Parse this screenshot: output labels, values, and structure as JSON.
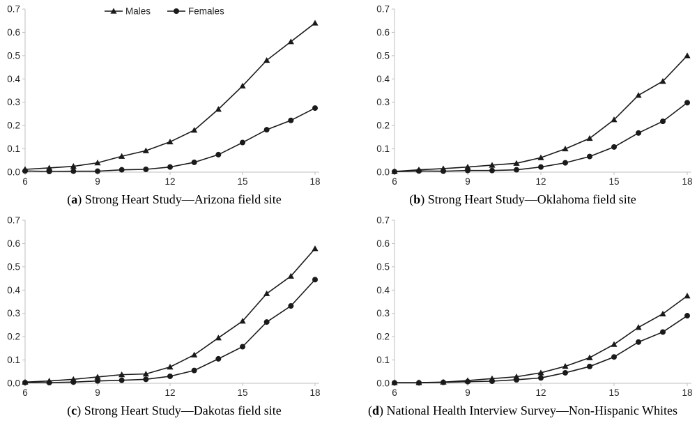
{
  "figure": {
    "background": "#ffffff",
    "series_color": "#1a1a1a",
    "axis_color": "#bfbfbf",
    "tick_label_color": "#262626"
  },
  "legend": {
    "position": "top of panel a",
    "items": [
      {
        "label": "Males",
        "marker": "triangle"
      },
      {
        "label": "Females",
        "marker": "circle"
      }
    ]
  },
  "chart_data": [
    {
      "type": "line",
      "caption": {
        "prefix": "(",
        "letter": "a",
        "suffix": ") ",
        "text": "Strong Heart Study—Arizona field site"
      },
      "x": [
        6,
        7,
        8,
        9,
        10,
        11,
        12,
        13,
        14,
        15,
        16,
        17,
        18
      ],
      "xticks": [
        6,
        9,
        12,
        15,
        18
      ],
      "yticks": [
        "0.0",
        "0.1",
        "0.2",
        "0.3",
        "0.4",
        "0.5",
        "0.6",
        "0.7"
      ],
      "xlim": [
        6,
        18
      ],
      "ylim": [
        0,
        0.7
      ],
      "grid": false,
      "show_legend": true,
      "legend_position": "top-center",
      "series": [
        {
          "name": "Males",
          "marker": "triangle",
          "values": [
            0.012,
            0.018,
            0.025,
            0.04,
            0.068,
            0.092,
            0.13,
            0.18,
            0.27,
            0.37,
            0.48,
            0.56,
            0.64
          ]
        },
        {
          "name": "Females",
          "marker": "circle",
          "values": [
            0.005,
            0.003,
            0.004,
            0.004,
            0.01,
            0.012,
            0.022,
            0.042,
            0.075,
            0.127,
            0.182,
            0.222,
            0.275
          ]
        }
      ]
    },
    {
      "type": "line",
      "caption": {
        "prefix": "(",
        "letter": "b",
        "suffix": ") ",
        "text": "Strong Heart Study—Oklahoma field site"
      },
      "x": [
        6,
        7,
        8,
        9,
        10,
        11,
        12,
        13,
        14,
        15,
        16,
        17,
        18
      ],
      "xticks": [
        6,
        9,
        12,
        15,
        18
      ],
      "yticks": [
        "0.0",
        "0.1",
        "0.2",
        "0.3",
        "0.4",
        "0.5",
        "0.6",
        "0.7"
      ],
      "xlim": [
        6,
        18
      ],
      "ylim": [
        0,
        0.7
      ],
      "grid": false,
      "show_legend": false,
      "series": [
        {
          "name": "Males",
          "marker": "triangle",
          "values": [
            0.003,
            0.01,
            0.015,
            0.022,
            0.03,
            0.038,
            0.062,
            0.1,
            0.145,
            0.225,
            0.33,
            0.39,
            0.5
          ]
        },
        {
          "name": "Females",
          "marker": "circle",
          "values": [
            0.002,
            0.005,
            0.004,
            0.007,
            0.007,
            0.01,
            0.022,
            0.04,
            0.067,
            0.108,
            0.168,
            0.218,
            0.298
          ]
        }
      ]
    },
    {
      "type": "line",
      "caption": {
        "prefix": "(",
        "letter": "c",
        "suffix": ") ",
        "text": "Strong Heart Study—Dakotas field site"
      },
      "x": [
        6,
        7,
        8,
        9,
        10,
        11,
        12,
        13,
        14,
        15,
        16,
        17,
        18
      ],
      "xticks": [
        6,
        9,
        12,
        15,
        18
      ],
      "yticks": [
        "0.0",
        "0.1",
        "0.2",
        "0.3",
        "0.4",
        "0.5",
        "0.6",
        "0.7"
      ],
      "xlim": [
        6,
        18
      ],
      "ylim": [
        0,
        0.7
      ],
      "grid": false,
      "show_legend": false,
      "series": [
        {
          "name": "Males",
          "marker": "triangle",
          "values": [
            0.005,
            0.01,
            0.017,
            0.027,
            0.037,
            0.04,
            0.07,
            0.122,
            0.195,
            0.267,
            0.385,
            0.46,
            0.578
          ]
        },
        {
          "name": "Females",
          "marker": "circle",
          "values": [
            0.003,
            0.003,
            0.005,
            0.01,
            0.013,
            0.017,
            0.03,
            0.055,
            0.105,
            0.157,
            0.263,
            0.332,
            0.445
          ]
        }
      ]
    },
    {
      "type": "line",
      "caption": {
        "prefix": "(",
        "letter": "d",
        "suffix": ") ",
        "text": "National Health Interview Survey—Non-Hispanic Whites"
      },
      "x": [
        6,
        7,
        8,
        9,
        10,
        11,
        12,
        13,
        14,
        15,
        16,
        17,
        18
      ],
      "xticks": [
        6,
        9,
        12,
        15,
        18
      ],
      "yticks": [
        "0.0",
        "0.1",
        "0.2",
        "0.3",
        "0.4",
        "0.5",
        "0.6",
        "0.7"
      ],
      "xlim": [
        6,
        18
      ],
      "ylim": [
        0,
        0.7
      ],
      "grid": false,
      "show_legend": false,
      "series": [
        {
          "name": "Males",
          "marker": "triangle",
          "values": [
            0.003,
            0.003,
            0.005,
            0.012,
            0.02,
            0.028,
            0.045,
            0.073,
            0.11,
            0.167,
            0.24,
            0.298,
            0.375
          ]
        },
        {
          "name": "Females",
          "marker": "circle",
          "values": [
            0.002,
            0.002,
            0.004,
            0.007,
            0.009,
            0.015,
            0.023,
            0.045,
            0.072,
            0.113,
            0.177,
            0.22,
            0.29
          ]
        }
      ]
    }
  ]
}
